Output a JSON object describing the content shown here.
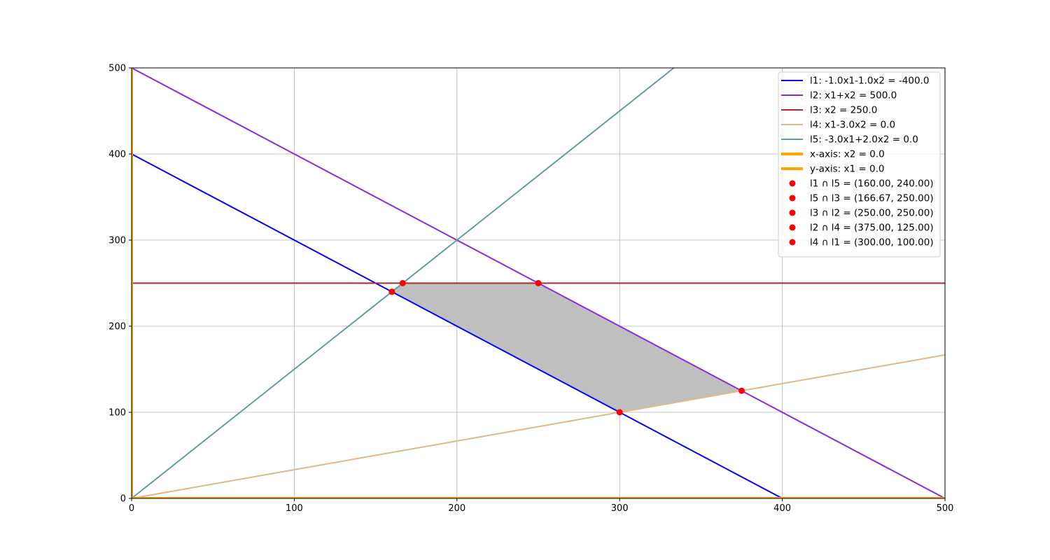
{
  "chart_data": {
    "type": "line",
    "title": "",
    "xlabel": "",
    "ylabel": "",
    "xlim": [
      0,
      500
    ],
    "ylim": [
      0,
      500
    ],
    "x_ticks": [
      0,
      100,
      200,
      300,
      400,
      500
    ],
    "y_ticks": [
      0,
      100,
      200,
      300,
      400,
      500
    ],
    "grid": true,
    "legend_position": "top-right",
    "series": [
      {
        "name": "l1: -1.0x1-1.0x2 = -400.0",
        "color": "#0000ff",
        "x": [
          0,
          400
        ],
        "y": [
          400,
          0
        ]
      },
      {
        "name": "l2: x1+x2 = 500.0",
        "color": "#8a2be2",
        "x": [
          0,
          500
        ],
        "y": [
          500,
          0
        ]
      },
      {
        "name": "l3: x2 = 250.0",
        "color": "#a52a2a",
        "x": [
          0,
          500
        ],
        "y": [
          250,
          250
        ]
      },
      {
        "name": "l4: x1-3.0x2 = 0.0",
        "color": "#deb887",
        "x": [
          0,
          500
        ],
        "y": [
          0,
          166.67
        ]
      },
      {
        "name": "l5: -3.0x1+2.0x2 = 0.0",
        "color": "#5f9ea0",
        "x": [
          0,
          333.33
        ],
        "y": [
          0,
          500
        ]
      },
      {
        "name": "x-axis: x2 = 0.0",
        "color": "#ffa500",
        "x": [
          0,
          500
        ],
        "y": [
          0,
          0
        ],
        "thick": true
      },
      {
        "name": "y-axis: x1 = 0.0",
        "color": "#ffa500",
        "x": [
          0,
          0
        ],
        "y": [
          0,
          500
        ],
        "thick": true
      }
    ],
    "points": [
      {
        "name": "l1 ∩ l5 = (160.00, 240.00)",
        "x": 160,
        "y": 240
      },
      {
        "name": "l5 ∩ l3 = (166.67, 250.00)",
        "x": 166.67,
        "y": 250
      },
      {
        "name": "l3 ∩ l2 = (250.00, 250.00)",
        "x": 250,
        "y": 250
      },
      {
        "name": "l2 ∩ l4 = (375.00, 125.00)",
        "x": 375,
        "y": 125
      },
      {
        "name": "l4 ∩ l1 = (300.00, 100.00)",
        "x": 300,
        "y": 100
      }
    ],
    "point_color": "#ff0000",
    "feasible_region": {
      "color": "#bfbfbf",
      "vertices": [
        [
          160,
          240
        ],
        [
          166.67,
          250
        ],
        [
          250,
          250
        ],
        [
          375,
          125
        ],
        [
          300,
          100
        ]
      ]
    }
  }
}
